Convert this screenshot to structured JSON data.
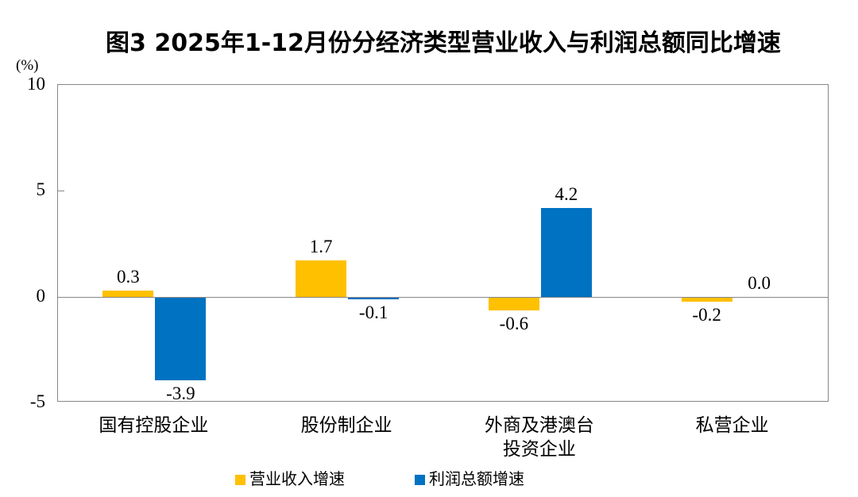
{
  "chart_data": {
    "type": "bar",
    "title": "图3  2025年1-12月份分经济类型营业收入与利润总额同比增速",
    "unit_label": "(%)",
    "categories": [
      "国有控股企业",
      "股份制企业",
      "外商及港澳台\n投资企业",
      "私营企业"
    ],
    "series": [
      {
        "name": "营业收入增速",
        "color": "#FFC000",
        "values": [
          0.3,
          1.7,
          -0.6,
          -0.2
        ]
      },
      {
        "name": "利润总额增速",
        "color": "#0072C2",
        "values": [
          -3.9,
          -0.1,
          4.2,
          0.0
        ]
      }
    ],
    "ylim": [
      -5,
      10
    ],
    "yticks": [
      10,
      5,
      0,
      -5
    ],
    "xlabel": "",
    "ylabel": "",
    "grid": false,
    "zero_line": true,
    "legend_position": "bottom",
    "axis_color": "#878787",
    "value_label_decimals": 1
  }
}
